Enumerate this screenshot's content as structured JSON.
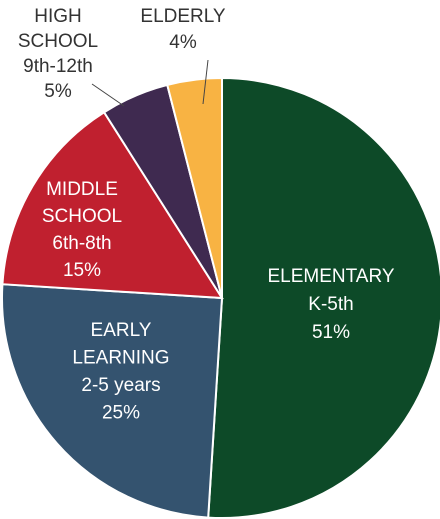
{
  "chart_data": {
    "type": "pie",
    "categories": [
      [
        "ELEMENTARY",
        "K-5th"
      ],
      [
        "EARLY",
        "LEARNING",
        "2-5 years"
      ],
      [
        "MIDDLE",
        "SCHOOL",
        "6th-8th"
      ],
      [
        "HIGH",
        "SCHOOL",
        "9th-12th"
      ],
      [
        "ELDERLY"
      ]
    ],
    "values": [
      51,
      25,
      15,
      5,
      4
    ],
    "value_labels": [
      "51%",
      "25%",
      "15%",
      "5%",
      "4%"
    ],
    "colors": [
      "#0d4a28",
      "#34536f",
      "#c0202f",
      "#3f2a50",
      "#f8b343"
    ]
  }
}
